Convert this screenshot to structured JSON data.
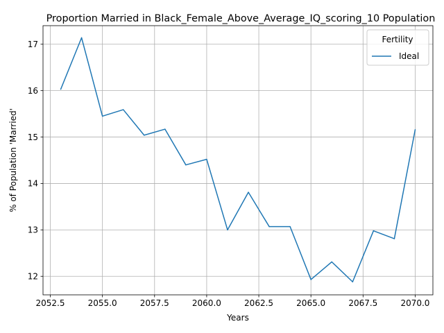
{
  "chart_data": {
    "type": "line",
    "title": "Proportion Married in Black_Female_Above_Average_IQ_scoring_10 Population",
    "xlabel": "Years",
    "ylabel": "% of Population 'Married'",
    "xlim": [
      2052.15,
      2070.85
    ],
    "ylim": [
      11.6,
      17.4
    ],
    "x_ticks": [
      2052.5,
      2055.0,
      2057.5,
      2060.0,
      2062.5,
      2065.0,
      2067.5,
      2070.0
    ],
    "x_tick_labels": [
      "2052.5",
      "2055.0",
      "2057.5",
      "2060.0",
      "2062.5",
      "2065.0",
      "2067.5",
      "2070.0"
    ],
    "y_ticks": [
      12,
      13,
      14,
      15,
      16,
      17
    ],
    "y_tick_labels": [
      "12",
      "13",
      "14",
      "15",
      "16",
      "17"
    ],
    "grid": true,
    "legend": {
      "title": "Fertility",
      "placement": "top-right"
    },
    "series": [
      {
        "name": "Ideal",
        "color": "#1f77b4",
        "x": [
          2053,
          2054,
          2055,
          2056,
          2057,
          2058,
          2059,
          2060,
          2061,
          2062,
          2063,
          2064,
          2065,
          2066,
          2067,
          2068,
          2069,
          2070
        ],
        "values": [
          16.03,
          17.14,
          15.45,
          15.59,
          15.04,
          15.17,
          14.4,
          14.52,
          13.0,
          13.81,
          13.07,
          13.07,
          11.93,
          12.31,
          11.88,
          12.98,
          12.81,
          15.16
        ]
      }
    ]
  }
}
